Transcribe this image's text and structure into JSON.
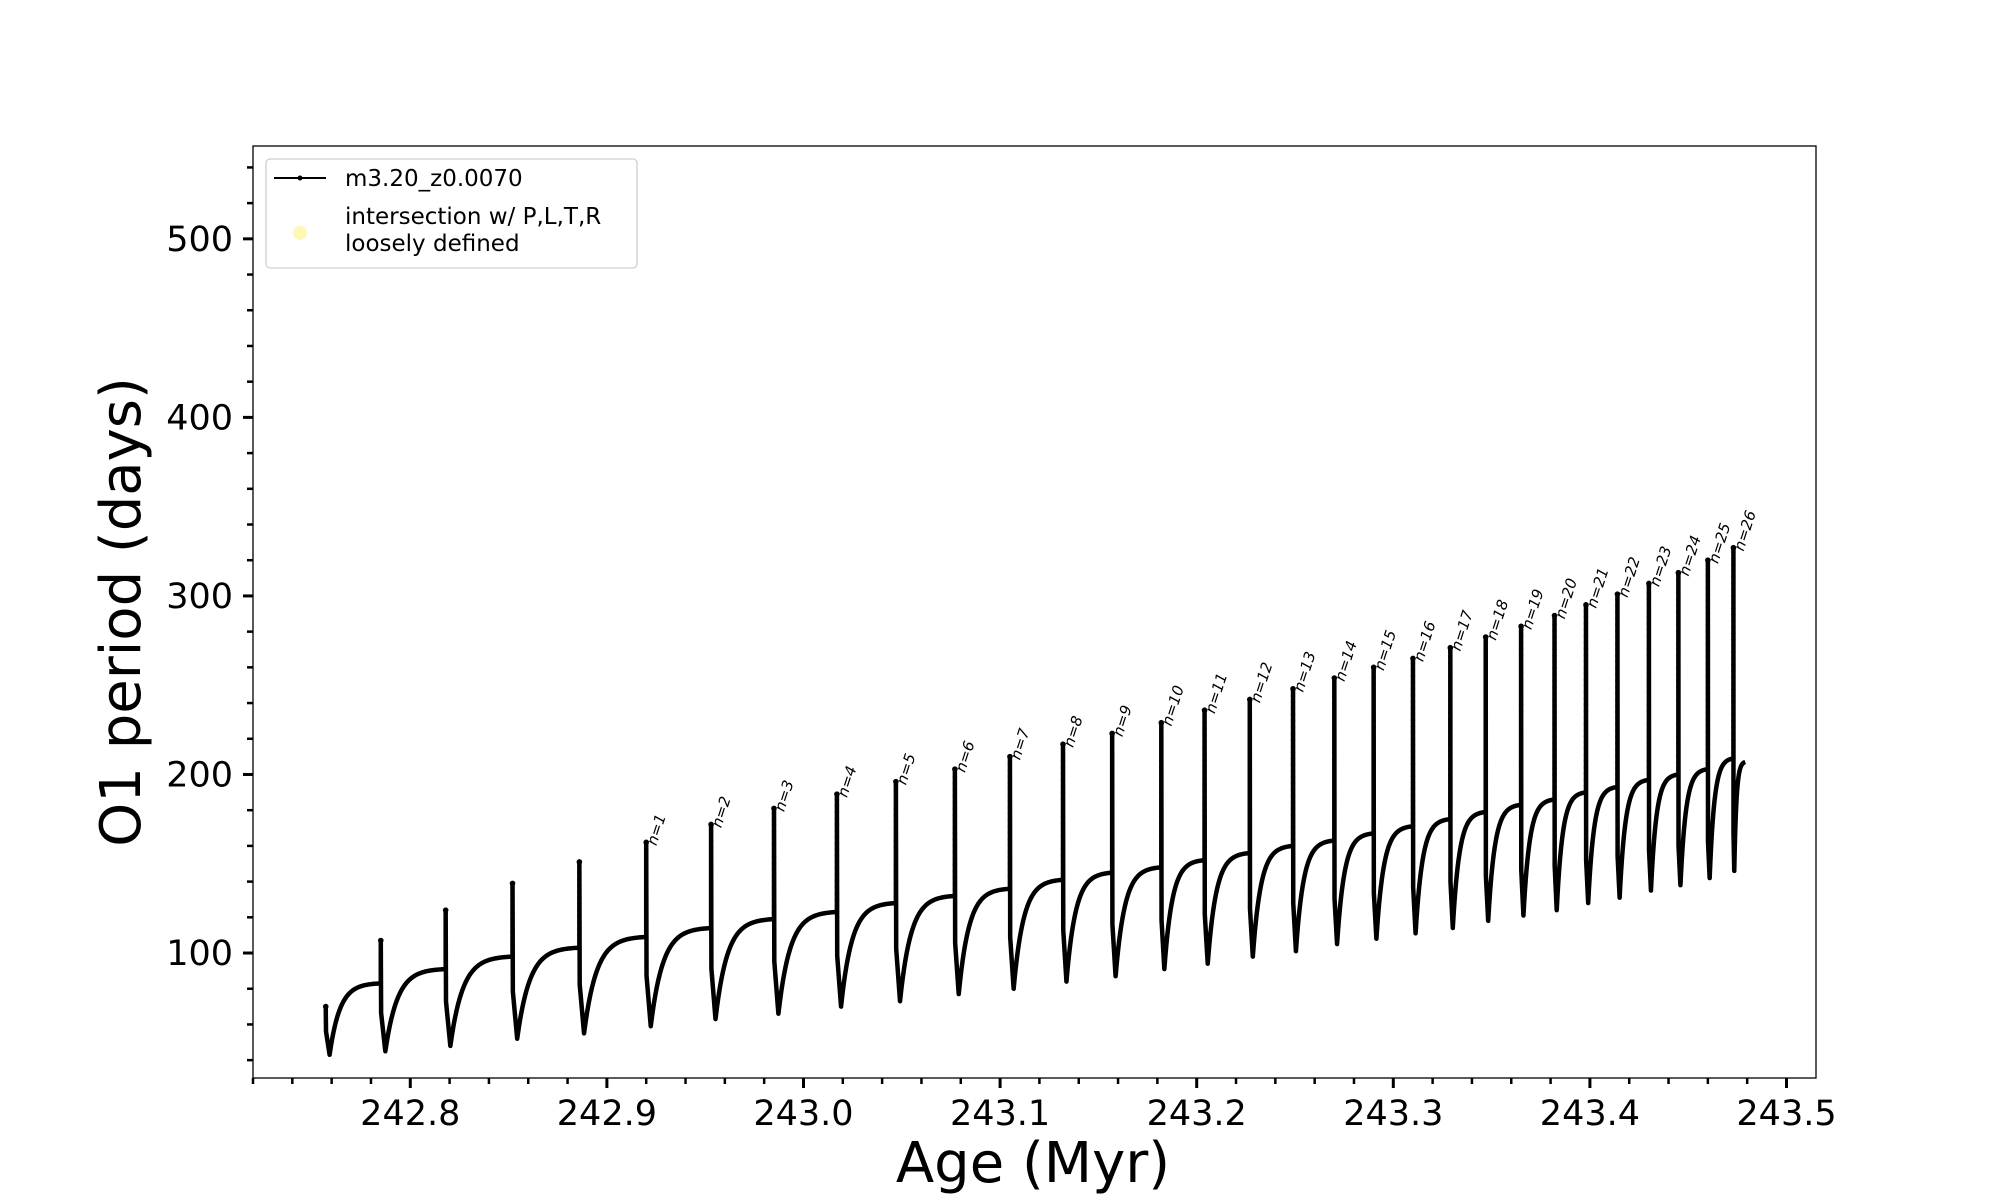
{
  "chart_data": {
    "type": "line",
    "xlabel": "Age (Myr)",
    "ylabel": "O1 period (days)",
    "xlim": [
      242.72,
      243.515
    ],
    "ylim": [
      30,
      552
    ],
    "x_ticks": [
      242.8,
      242.9,
      243.0,
      243.1,
      243.2,
      243.3,
      243.4,
      243.5
    ],
    "x_tick_labels": [
      "242.8",
      "242.9",
      "243.0",
      "243.1",
      "243.2",
      "243.3",
      "243.4",
      "243.5"
    ],
    "y_ticks": [
      100,
      200,
      300,
      400,
      500
    ],
    "y_tick_labels": [
      "100",
      "200",
      "300",
      "400",
      "500"
    ],
    "grid": false,
    "legend": {
      "position": "top-left",
      "entries": [
        {
          "label": "m3.20_z0.0070",
          "marker": "line-dot",
          "color": "#000000"
        },
        {
          "label_lines": [
            "intersection w/ P,L,T,R",
            "loosely defined"
          ],
          "marker": "circle",
          "color": "#fff6a8"
        }
      ]
    },
    "series": [
      {
        "name": "m3.20_z0.0070",
        "color": "#000000",
        "pulses": [
          {
            "x_start": 242.757,
            "y_start": 70,
            "y_spike": 70,
            "y_min": 43,
            "y_end": 83
          },
          {
            "x_start": 242.785,
            "y_start": 83,
            "y_spike": 107,
            "y_min": 45,
            "y_end": 91
          },
          {
            "x_start": 242.818,
            "y_start": 91,
            "y_spike": 124,
            "y_min": 48,
            "y_end": 98
          },
          {
            "x_start": 242.852,
            "y_start": 98,
            "y_spike": 139,
            "y_min": 52,
            "y_end": 103
          },
          {
            "x_start": 242.886,
            "y_start": 103,
            "y_spike": 151,
            "y_min": 55,
            "y_end": 109
          },
          {
            "x_start": 242.92,
            "y_start": 109,
            "y_spike": 162,
            "y_min": 59,
            "y_end": 114
          },
          {
            "x_start": 242.953,
            "y_start": 114,
            "y_spike": 172,
            "y_min": 63,
            "y_end": 119
          },
          {
            "x_start": 242.985,
            "y_start": 119,
            "y_spike": 181,
            "y_min": 66,
            "y_end": 123
          },
          {
            "x_start": 243.017,
            "y_start": 123,
            "y_spike": 189,
            "y_min": 70,
            "y_end": 128
          },
          {
            "x_start": 243.047,
            "y_start": 128,
            "y_spike": 196,
            "y_min": 73,
            "y_end": 132
          },
          {
            "x_start": 243.077,
            "y_start": 132,
            "y_spike": 203,
            "y_min": 77,
            "y_end": 136
          },
          {
            "x_start": 243.105,
            "y_start": 136,
            "y_spike": 210,
            "y_min": 80,
            "y_end": 141
          },
          {
            "x_start": 243.132,
            "y_start": 141,
            "y_spike": 217,
            "y_min": 84,
            "y_end": 145
          },
          {
            "x_start": 243.157,
            "y_start": 145,
            "y_spike": 223,
            "y_min": 87,
            "y_end": 148
          },
          {
            "x_start": 243.182,
            "y_start": 148,
            "y_spike": 229,
            "y_min": 91,
            "y_end": 152
          },
          {
            "x_start": 243.204,
            "y_start": 152,
            "y_spike": 236,
            "y_min": 94,
            "y_end": 156
          },
          {
            "x_start": 243.227,
            "y_start": 156,
            "y_spike": 242,
            "y_min": 98,
            "y_end": 160
          },
          {
            "x_start": 243.249,
            "y_start": 160,
            "y_spike": 248,
            "y_min": 101,
            "y_end": 163
          },
          {
            "x_start": 243.27,
            "y_start": 163,
            "y_spike": 254,
            "y_min": 105,
            "y_end": 167
          },
          {
            "x_start": 243.29,
            "y_start": 167,
            "y_spike": 260,
            "y_min": 108,
            "y_end": 171
          },
          {
            "x_start": 243.31,
            "y_start": 171,
            "y_spike": 265,
            "y_min": 111,
            "y_end": 175
          },
          {
            "x_start": 243.329,
            "y_start": 175,
            "y_spike": 271,
            "y_min": 114,
            "y_end": 179
          },
          {
            "x_start": 243.347,
            "y_start": 179,
            "y_spike": 277,
            "y_min": 118,
            "y_end": 183
          },
          {
            "x_start": 243.365,
            "y_start": 183,
            "y_spike": 283,
            "y_min": 121,
            "y_end": 186
          },
          {
            "x_start": 243.382,
            "y_start": 186,
            "y_spike": 289,
            "y_min": 124,
            "y_end": 190
          },
          {
            "x_start": 243.398,
            "y_start": 190,
            "y_spike": 295,
            "y_min": 128,
            "y_end": 193
          },
          {
            "x_start": 243.414,
            "y_start": 193,
            "y_spike": 301,
            "y_min": 131,
            "y_end": 197
          },
          {
            "x_start": 243.43,
            "y_start": 197,
            "y_spike": 307,
            "y_min": 135,
            "y_end": 200
          },
          {
            "x_start": 243.445,
            "y_start": 200,
            "y_spike": 313,
            "y_min": 138,
            "y_end": 203
          },
          {
            "x_start": 243.46,
            "y_start": 203,
            "y_spike": 320,
            "y_min": 142,
            "y_end": 209
          },
          {
            "x_start": 243.473,
            "y_start": 209,
            "y_spike": 327,
            "y_min": 146,
            "y_end": 207
          }
        ],
        "x_end": 243.479
      }
    ],
    "annotations": [
      {
        "text": "n=1",
        "x": 242.92,
        "y": 162
      },
      {
        "text": "n=2",
        "x": 242.953,
        "y": 172
      },
      {
        "text": "n=3",
        "x": 242.985,
        "y": 181
      },
      {
        "text": "n=4",
        "x": 243.017,
        "y": 189
      },
      {
        "text": "n=5",
        "x": 243.047,
        "y": 196
      },
      {
        "text": "n=6",
        "x": 243.077,
        "y": 203
      },
      {
        "text": "n=7",
        "x": 243.105,
        "y": 210
      },
      {
        "text": "n=8",
        "x": 243.132,
        "y": 217
      },
      {
        "text": "n=9",
        "x": 243.157,
        "y": 223
      },
      {
        "text": "n=10",
        "x": 243.182,
        "y": 229
      },
      {
        "text": "n=11",
        "x": 243.204,
        "y": 236
      },
      {
        "text": "n=12",
        "x": 243.227,
        "y": 242
      },
      {
        "text": "n=13",
        "x": 243.249,
        "y": 248
      },
      {
        "text": "n=14",
        "x": 243.27,
        "y": 254
      },
      {
        "text": "n=15",
        "x": 243.29,
        "y": 260
      },
      {
        "text": "n=16",
        "x": 243.31,
        "y": 265
      },
      {
        "text": "n=17",
        "x": 243.329,
        "y": 271
      },
      {
        "text": "n=18",
        "x": 243.347,
        "y": 277
      },
      {
        "text": "n=19",
        "x": 243.365,
        "y": 283
      },
      {
        "text": "n=20",
        "x": 243.382,
        "y": 289
      },
      {
        "text": "n=21",
        "x": 243.398,
        "y": 295
      },
      {
        "text": "n=22",
        "x": 243.414,
        "y": 301
      },
      {
        "text": "n=23",
        "x": 243.43,
        "y": 307
      },
      {
        "text": "n=24",
        "x": 243.445,
        "y": 313
      },
      {
        "text": "n=25",
        "x": 243.46,
        "y": 320
      },
      {
        "text": "n=26",
        "x": 243.473,
        "y": 327
      }
    ]
  }
}
